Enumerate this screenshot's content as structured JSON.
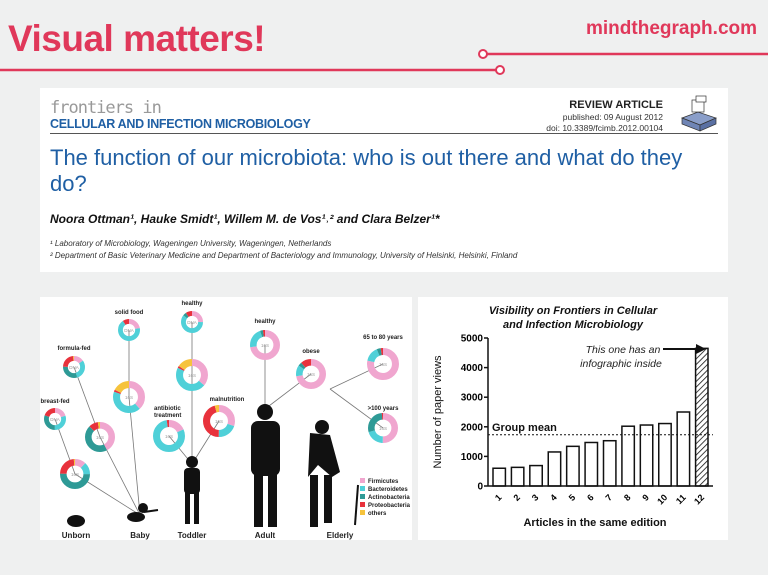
{
  "header": {
    "title": "Visual matters!",
    "site": "mindthegraph.com",
    "accent": "#e0385a"
  },
  "paper": {
    "journal_line1": "frontiers in",
    "journal_line2": "CELLULAR AND INFECTION MICROBIOLOGY",
    "article_type": "REVIEW ARTICLE",
    "published": "published: 09 August 2012",
    "doi": "doi: 10.3389/fcimb.2012.00104",
    "title": "The function of our microbiota: who is out there and what do they do?",
    "authors": "Noora Ottman¹, Hauke Smidt¹, Willem M. de Vos¹˒² and Clara Belzer¹*",
    "affiliations": [
      "¹  Laboratory of Microbiology, Wageningen University, Wageningen, Netherlands",
      "²  Department of Basic Veterinary Medicine and Department of Bacteriology and Immunology, University of Helsinki, Helsinki, Finland"
    ]
  },
  "infographic": {
    "colors": {
      "Firmicutes": "#f0a6cf",
      "Bacteroidetes": "#4fd0d8",
      "Actinobacteria": "#2e9a96",
      "Proteobacteria": "#e8323c",
      "others": "#f6c33c"
    },
    "legend": [
      "Firmicutes",
      "Bacteroidetes",
      "Actinobacteria",
      "Proteobacteria",
      "others"
    ],
    "stages": [
      "Unborn",
      "Baby",
      "Toddler",
      "Adult",
      "Elderly"
    ],
    "center_label": "16S",
    "center_label_dna": "DNA",
    "donuts": [
      {
        "label": "breast-fed",
        "center": "DNA",
        "composition": [
          0.2,
          0.3,
          0.3,
          0.2,
          0
        ]
      },
      {
        "label": "",
        "center": "16S",
        "composition": [
          0.12,
          0.13,
          0.5,
          0.23,
          0.02
        ]
      },
      {
        "label": "formula-fed",
        "center": "DNA",
        "composition": [
          0.15,
          0.3,
          0.3,
          0.23,
          0.02
        ]
      },
      {
        "label": "",
        "center": "16S",
        "composition": [
          0.42,
          0,
          0.45,
          0.1,
          0.03
        ]
      },
      {
        "label": "solid food",
        "center": "DNA",
        "composition": [
          0.22,
          0.68,
          0,
          0.1,
          0
        ]
      },
      {
        "label": "",
        "center": "16S",
        "composition": [
          0.38,
          0.42,
          0,
          0.02,
          0.18
        ]
      },
      {
        "label": "healthy",
        "center": "DNA",
        "composition": [
          0.25,
          0.6,
          0.05,
          0.1,
          0
        ]
      },
      {
        "label": "",
        "center": "16S",
        "composition": [
          0.36,
          0.46,
          0,
          0.02,
          0.16
        ]
      },
      {
        "label": "antibiotic treatment",
        "center": "16S",
        "composition": [
          0.18,
          0.79,
          0,
          0.03,
          0
        ]
      },
      {
        "label": "malnutrition",
        "center": "16S",
        "composition": [
          0.3,
          0.2,
          0,
          0.45,
          0.05
        ]
      },
      {
        "label": "healthy",
        "center": "16S",
        "composition": [
          0.72,
          0.22,
          0.03,
          0.03,
          0
        ]
      },
      {
        "label": "obese",
        "center": "16S",
        "composition": [
          0.72,
          0.12,
          0.04,
          0.12,
          0
        ]
      },
      {
        "label": "65 to 80 years",
        "center": "16S",
        "composition": [
          0.78,
          0.15,
          0.04,
          0.03,
          0
        ]
      },
      {
        "label": ">100 years",
        "center": "16S",
        "composition": [
          0.5,
          0.2,
          0.28,
          0.02,
          0
        ]
      }
    ]
  },
  "chart_data": {
    "type": "bar",
    "title": "Visibility on Frontiers in Cellular and Infection Microbiology",
    "title_lines": [
      "Visibility on Frontiers in Cellular",
      "and Infection Microbiology"
    ],
    "xlabel": "Articles in the same edition",
    "ylabel": "Number of paper views",
    "categories": [
      "1",
      "2",
      "3",
      "4",
      "5",
      "6",
      "7",
      "8",
      "9",
      "10",
      "11",
      "12"
    ],
    "values": [
      600,
      630,
      690,
      1150,
      1340,
      1470,
      1530,
      2020,
      2060,
      2110,
      2500,
      4650
    ],
    "ylim": [
      0,
      5000
    ],
    "yticks": [
      "0",
      "1000",
      "2000",
      "3000",
      "4000",
      "5000"
    ],
    "group_mean": {
      "label": "Group mean",
      "value": 1730
    },
    "annotation": [
      "This one has an",
      "infographic inside"
    ],
    "highlight_index": 11
  }
}
